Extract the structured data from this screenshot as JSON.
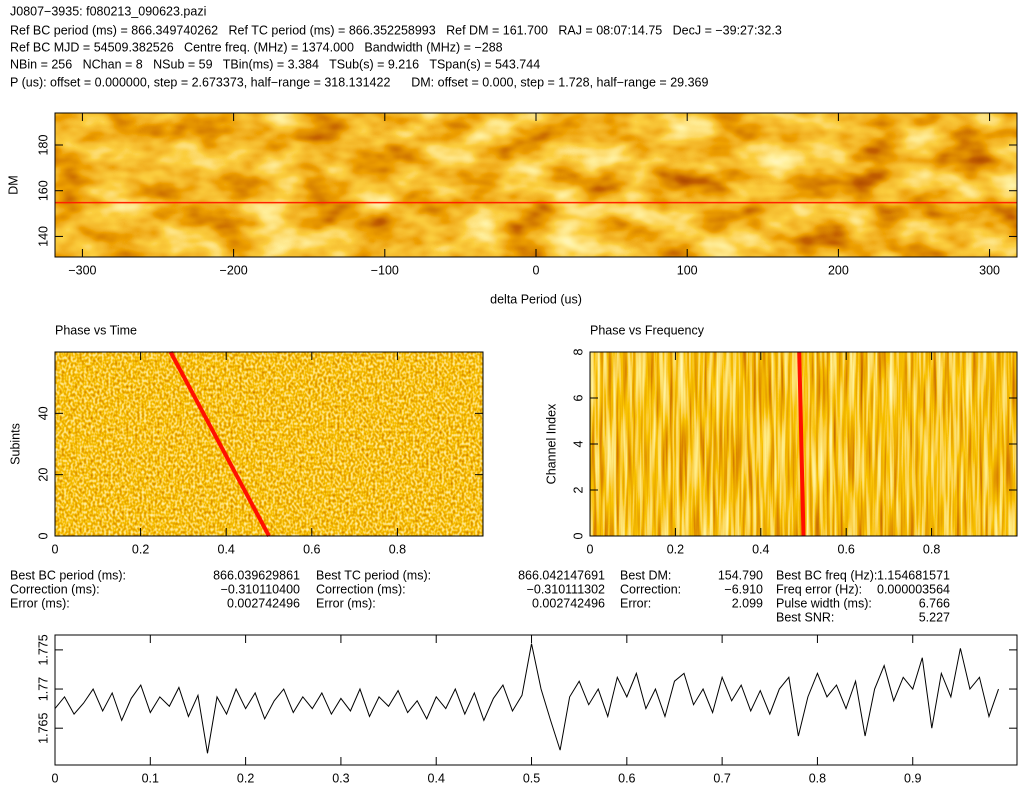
{
  "header": {
    "lines": [
      "J0807−3935: f080213_090623.pazi",
      "Ref BC period (ms) = 866.349740262   Ref TC period (ms) = 866.352258993   Ref DM = 161.700   RAJ = 08:07:14.75   DecJ = −39:27:32.3",
      "Ref BC MJD = 54509.382526   Centre freq. (MHz) = 1374.000   Bandwidth (MHz) = −288",
      "NBin = 256   NChan = 8   NSub = 59   TBin(ms) = 3.384   TSub(s) = 9.216   TSpan(s) = 543.744",
      "P (us): offset = 0.000000, step = 2.673373, half−range = 318.131422      DM: offset = 0.000, step = 1.728, half−range = 29.369"
    ]
  },
  "stats": [
    [
      {
        "label": "Best BC period (ms):",
        "value": "866.039629861"
      },
      {
        "label": "Correction (ms):",
        "value": "−0.310110400"
      },
      {
        "label": "Error (ms):",
        "value": "0.002742496"
      }
    ],
    [
      {
        "label": "Best TC period (ms):",
        "value": "866.042147691"
      },
      {
        "label": "Correction (ms):",
        "value": "−0.310111302"
      },
      {
        "label": "Error (ms):",
        "value": "0.002742496"
      }
    ],
    [
      {
        "label": "Best DM:",
        "value": "154.790"
      },
      {
        "label": "Correction:",
        "value": "−6.910"
      },
      {
        "label": "Error:",
        "value": "2.099"
      }
    ],
    [
      {
        "label": "Best BC freq (Hz):",
        "value": "1.154681571"
      },
      {
        "label": "Freq error (Hz):",
        "value": "0.000003564"
      },
      {
        "label": "Pulse width (ms):",
        "value": "6.766"
      },
      {
        "label": "Best SNR:",
        "value": "5.227"
      }
    ]
  ],
  "chart_data": [
    {
      "type": "heatmap",
      "x_label": "delta Period (us)",
      "y_label": "DM",
      "xlim": [
        -318.13,
        318.13
      ],
      "ylim": [
        131,
        194
      ],
      "xticks": [
        {
          "value": -300,
          "label": "−300"
        },
        {
          "value": -200,
          "label": "−200"
        },
        {
          "value": -100,
          "label": "−100"
        },
        0,
        100,
        200,
        300
      ],
      "yticks": [
        140,
        160,
        180
      ],
      "hline": 154.79,
      "line_color": "#ff2000"
    },
    {
      "type": "heatmap",
      "title": "Phase vs Time",
      "y_label": "Subints",
      "xlim": [
        0,
        1
      ],
      "ylim": [
        0,
        60
      ],
      "xticks": [
        0,
        0.2,
        0.4,
        0.6,
        0.8
      ],
      "yticks": [
        0,
        20,
        40
      ],
      "line": {
        "x": [
          0.27,
          0.5
        ],
        "y": [
          60,
          0
        ]
      },
      "line_color": "#ff1000"
    },
    {
      "type": "heatmap",
      "title": "Phase vs Frequency",
      "y_label": "Channel Index",
      "xlim": [
        0,
        1
      ],
      "ylim": [
        0,
        8
      ],
      "xticks": [
        0,
        0.2,
        0.4,
        0.6,
        0.8
      ],
      "yticks": [
        0,
        2,
        4,
        6,
        8
      ],
      "line": {
        "x": [
          0.49,
          0.5
        ],
        "y": [
          8,
          0
        ]
      },
      "line_color": "#ff1000"
    },
    {
      "type": "line",
      "xlim": [
        0,
        1.0094
      ],
      "ylim": [
        1.7603,
        1.7769
      ],
      "xticks": [
        0,
        0.1,
        0.2,
        0.3,
        0.4,
        0.5,
        0.6,
        0.7,
        0.8,
        0.9
      ],
      "yticks": [
        1.765,
        1.77,
        1.775
      ],
      "color": "#000000",
      "x": [
        0,
        0.01,
        0.02,
        0.03,
        0.04,
        0.05,
        0.06,
        0.07,
        0.08,
        0.09,
        0.1,
        0.11,
        0.12,
        0.13,
        0.14,
        0.15,
        0.16,
        0.17,
        0.18,
        0.19,
        0.2,
        0.21,
        0.22,
        0.23,
        0.24,
        0.25,
        0.26,
        0.27,
        0.28,
        0.29,
        0.3,
        0.31,
        0.32,
        0.33,
        0.34,
        0.35,
        0.36,
        0.37,
        0.38,
        0.39,
        0.4,
        0.41,
        0.42,
        0.43,
        0.44,
        0.45,
        0.46,
        0.47,
        0.48,
        0.49,
        0.5,
        0.51,
        0.52,
        0.53,
        0.54,
        0.55,
        0.56,
        0.57,
        0.58,
        0.59,
        0.6,
        0.61,
        0.62,
        0.63,
        0.64,
        0.65,
        0.66,
        0.67,
        0.68,
        0.69,
        0.7,
        0.71,
        0.72,
        0.73,
        0.74,
        0.75,
        0.76,
        0.77,
        0.78,
        0.79,
        0.8,
        0.81,
        0.82,
        0.83,
        0.84,
        0.85,
        0.86,
        0.87,
        0.88,
        0.89,
        0.9,
        0.91,
        0.92,
        0.93,
        0.94,
        0.95,
        0.96,
        0.97,
        0.98,
        0.99
      ],
      "values": [
        1.7675,
        1.769,
        1.7668,
        1.7682,
        1.77,
        1.7672,
        1.7695,
        1.766,
        1.7688,
        1.7705,
        1.767,
        1.769,
        1.7678,
        1.7702,
        1.7665,
        1.7692,
        1.7618,
        1.769,
        1.7668,
        1.77,
        1.7675,
        1.7695,
        1.7662,
        1.7685,
        1.77,
        1.767,
        1.769,
        1.7675,
        1.7695,
        1.7668,
        1.7688,
        1.7672,
        1.77,
        1.7665,
        1.769,
        1.7678,
        1.7698,
        1.767,
        1.7685,
        1.7662,
        1.769,
        1.7675,
        1.77,
        1.7668,
        1.7695,
        1.766,
        1.7688,
        1.7705,
        1.7672,
        1.7692,
        1.7758,
        1.77,
        1.766,
        1.7622,
        1.769,
        1.771,
        1.768,
        1.77,
        1.7665,
        1.7715,
        1.769,
        1.772,
        1.7675,
        1.77,
        1.7665,
        1.771,
        1.772,
        1.768,
        1.77,
        1.767,
        1.7715,
        1.7685,
        1.7705,
        1.7672,
        1.7698,
        1.7668,
        1.77,
        1.7715,
        1.764,
        1.769,
        1.772,
        1.769,
        1.7705,
        1.7675,
        1.771,
        1.764,
        1.77,
        1.773,
        1.7685,
        1.7715,
        1.77,
        1.774,
        1.765,
        1.772,
        1.769,
        1.7752,
        1.77,
        1.7715,
        1.7665,
        1.77
      ]
    }
  ]
}
